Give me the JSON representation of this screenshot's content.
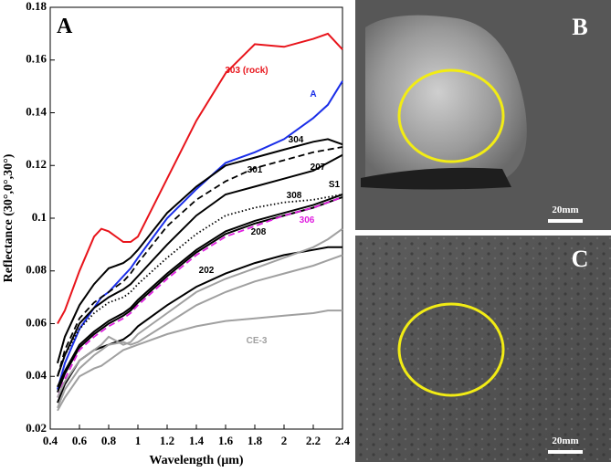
{
  "chart_data": {
    "type": "line",
    "panel_label": "A",
    "x_label": "Wavelength (μm)",
    "y_label": "Reflectance (30°,0°,30°)",
    "x": [
      0.45,
      0.5,
      0.6,
      0.7,
      0.75,
      0.8,
      0.9,
      0.95,
      1.0,
      1.2,
      1.4,
      1.6,
      1.8,
      2.0,
      2.2,
      2.3,
      2.4
    ],
    "xlim": [
      0.4,
      2.4
    ],
    "xticks": [
      0.4,
      0.6,
      0.8,
      1,
      1.2,
      1.4,
      1.6,
      1.8,
      2,
      2.2,
      2.4
    ],
    "ylim": [
      0.02,
      0.18
    ],
    "yticks": [
      0.02,
      0.04,
      0.06,
      0.08,
      0.1,
      0.12,
      0.14,
      0.16,
      0.18
    ],
    "grid": false,
    "series": [
      {
        "name": "303 (rock)",
        "color": "#e8141b",
        "style": "solid",
        "values": [
          0.06,
          0.065,
          0.08,
          0.093,
          0.096,
          0.095,
          0.091,
          0.091,
          0.093,
          0.115,
          0.137,
          0.155,
          0.166,
          0.165,
          0.168,
          0.17,
          0.164
        ]
      },
      {
        "name": "A",
        "color": "#1a2ee8",
        "style": "solid",
        "values": [
          0.035,
          0.045,
          0.058,
          0.066,
          0.07,
          0.072,
          0.078,
          0.081,
          0.085,
          0.1,
          0.111,
          0.121,
          0.125,
          0.13,
          0.138,
          0.143,
          0.152
        ]
      },
      {
        "name": "304",
        "color": "#000000",
        "style": "solid",
        "values": [
          0.045,
          0.055,
          0.067,
          0.075,
          0.078,
          0.081,
          0.083,
          0.085,
          0.088,
          0.102,
          0.112,
          0.12,
          0.123,
          0.126,
          0.129,
          0.13,
          0.128
        ]
      },
      {
        "name": "301",
        "color": "#000000",
        "style": "dashed",
        "values": [
          0.04,
          0.05,
          0.062,
          0.068,
          0.07,
          0.072,
          0.076,
          0.079,
          0.083,
          0.097,
          0.107,
          0.114,
          0.119,
          0.122,
          0.125,
          0.126,
          0.127
        ]
      },
      {
        "name": "207",
        "color": "#000000",
        "style": "solid",
        "values": [
          0.04,
          0.048,
          0.06,
          0.066,
          0.068,
          0.07,
          0.073,
          0.075,
          0.078,
          0.09,
          0.101,
          0.109,
          0.112,
          0.115,
          0.118,
          0.121,
          0.124
        ]
      },
      {
        "name": "308",
        "color": "#000000",
        "style": "dotted",
        "values": [
          0.04,
          0.048,
          0.058,
          0.064,
          0.066,
          0.068,
          0.07,
          0.072,
          0.075,
          0.085,
          0.094,
          0.101,
          0.104,
          0.106,
          0.107,
          0.108,
          0.109
        ]
      },
      {
        "name": "S1",
        "color": "#000000",
        "style": "solid",
        "values": [
          0.036,
          0.042,
          0.052,
          0.057,
          0.059,
          0.061,
          0.064,
          0.066,
          0.069,
          0.079,
          0.088,
          0.095,
          0.099,
          0.102,
          0.105,
          0.107,
          0.109
        ]
      },
      {
        "name": "208",
        "color": "#000000",
        "style": "solid",
        "values": [
          0.034,
          0.041,
          0.051,
          0.056,
          0.058,
          0.06,
          0.063,
          0.065,
          0.068,
          0.078,
          0.087,
          0.094,
          0.098,
          0.101,
          0.104,
          0.106,
          0.108
        ]
      },
      {
        "name": "306",
        "color": "#e020e0",
        "style": "dashed",
        "values": [
          0.032,
          0.039,
          0.05,
          0.055,
          0.057,
          0.059,
          0.062,
          0.064,
          0.067,
          0.077,
          0.086,
          0.093,
          0.097,
          0.101,
          0.104,
          0.106,
          0.108
        ]
      },
      {
        "name": "202",
        "color": "#000000",
        "style": "solid",
        "values": [
          0.03,
          0.037,
          0.046,
          0.05,
          0.051,
          0.052,
          0.054,
          0.056,
          0.059,
          0.067,
          0.074,
          0.079,
          0.083,
          0.086,
          0.088,
          0.089,
          0.089
        ]
      },
      {
        "color": "#a0a0a0",
        "style": "solid",
        "values": [
          0.032,
          0.038,
          0.046,
          0.05,
          0.052,
          0.055,
          0.052,
          0.053,
          0.056,
          0.064,
          0.072,
          0.077,
          0.081,
          0.085,
          0.089,
          0.092,
          0.096
        ]
      },
      {
        "color": "#a0a0a0",
        "style": "solid",
        "values": [
          0.028,
          0.035,
          0.043,
          0.048,
          0.05,
          0.052,
          0.053,
          0.052,
          0.053,
          0.06,
          0.067,
          0.072,
          0.076,
          0.079,
          0.082,
          0.084,
          0.086
        ]
      },
      {
        "name": "CE-3",
        "color": "#a0a0a0",
        "style": "solid",
        "values": [
          0.027,
          0.032,
          0.04,
          0.043,
          0.044,
          0.046,
          0.05,
          0.051,
          0.052,
          0.056,
          0.059,
          0.061,
          0.062,
          0.063,
          0.064,
          0.065,
          0.065
        ]
      }
    ]
  },
  "panels": [
    {
      "label": "B",
      "scale_bar": "20mm"
    },
    {
      "label": "C",
      "scale_bar": "20mm"
    }
  ]
}
